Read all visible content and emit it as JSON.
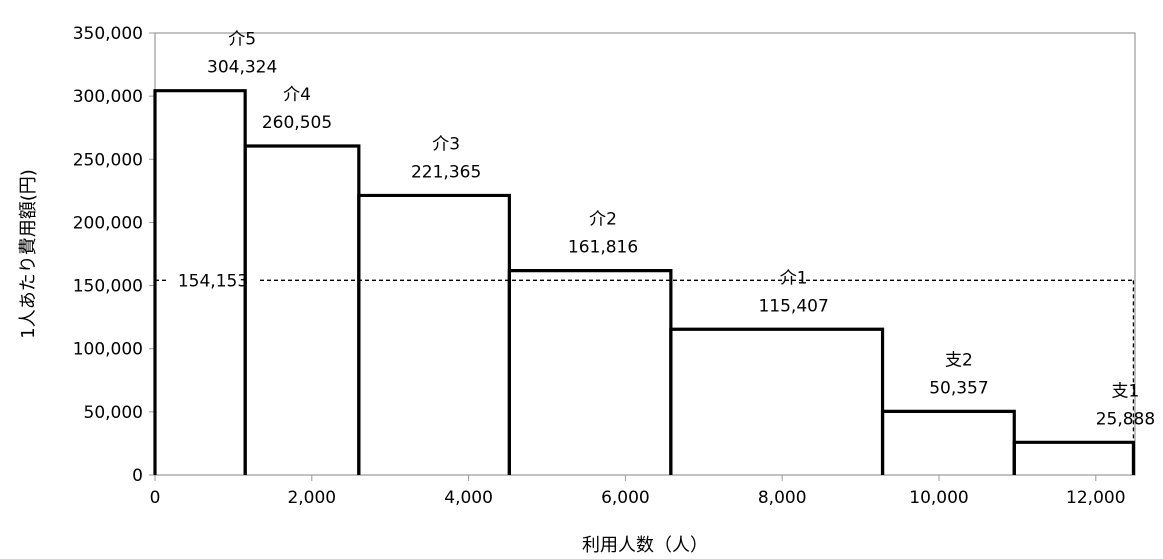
{
  "chart_data": {
    "type": "step",
    "xlabel": "利用人数（人）",
    "ylabel": "1人あたり費用額(円)",
    "xlim": [
      0,
      12500
    ],
    "ylim": [
      0,
      350000
    ],
    "x_ticks": [
      0,
      2000,
      4000,
      6000,
      8000,
      10000,
      12000
    ],
    "x_tick_labels": [
      "0",
      "2,000",
      "4,000",
      "6,000",
      "8,000",
      "10,000",
      "12,000"
    ],
    "y_ticks": [
      0,
      50000,
      100000,
      150000,
      200000,
      250000,
      300000,
      350000
    ],
    "y_tick_labels": [
      "0",
      "50,000",
      "100,000",
      "150,000",
      "200,000",
      "250,000",
      "300,000",
      "350,000"
    ],
    "grid": false,
    "average": {
      "value": 154153,
      "label": "154,153"
    },
    "segments": [
      {
        "name": "介5",
        "value": 304324,
        "value_label": "304,324",
        "x_start": 0,
        "x_end": 1150
      },
      {
        "name": "介4",
        "value": 260505,
        "value_label": "260,505",
        "x_start": 1150,
        "x_end": 2600
      },
      {
        "name": "介3",
        "value": 221365,
        "value_label": "221,365",
        "x_start": 2600,
        "x_end": 4520
      },
      {
        "name": "介2",
        "value": 161816,
        "value_label": "161,816",
        "x_start": 4520,
        "x_end": 6580
      },
      {
        "name": "介1",
        "value": 115407,
        "value_label": "115,407",
        "x_start": 6580,
        "x_end": 9280
      },
      {
        "name": "支2",
        "value": 50357,
        "value_label": "50,357",
        "x_start": 9280,
        "x_end": 10960
      },
      {
        "name": "支1",
        "value": 25888,
        "value_label": "25,888",
        "x_start": 10960,
        "x_end": 12480
      }
    ]
  }
}
